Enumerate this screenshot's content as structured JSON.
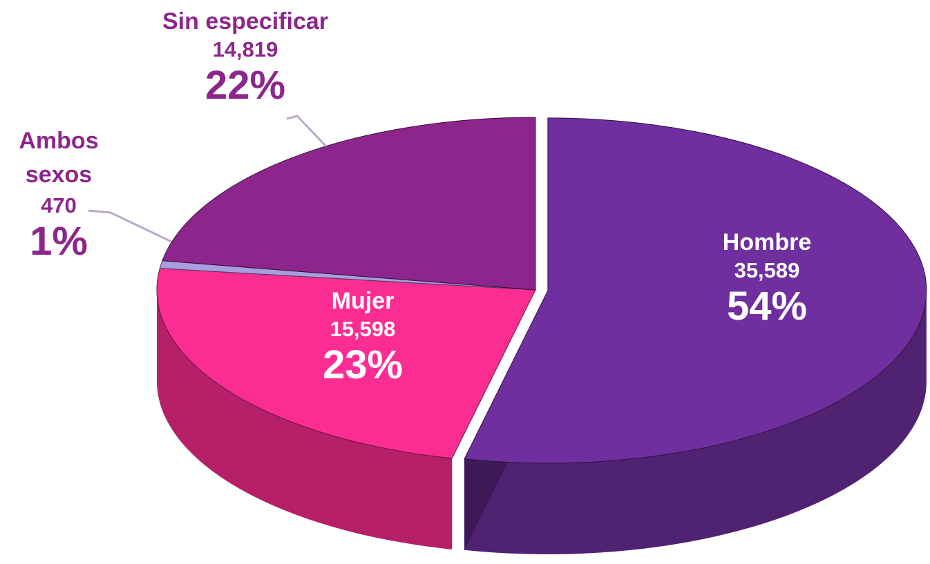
{
  "chart_data": {
    "type": "pie",
    "categories": [
      "Hombre",
      "Mujer",
      "Ambos sexos",
      "Sin especificar"
    ],
    "values": [
      35589,
      15598,
      470,
      14819
    ],
    "value_labels": [
      "35,589",
      "15,598",
      "470",
      "14,819"
    ],
    "percent_labels": [
      "54%",
      "23%",
      "1%",
      "22%"
    ],
    "colors": [
      "#6f2f9f",
      "#fc2d92",
      "#a99ddf",
      "#8d268c"
    ]
  }
}
